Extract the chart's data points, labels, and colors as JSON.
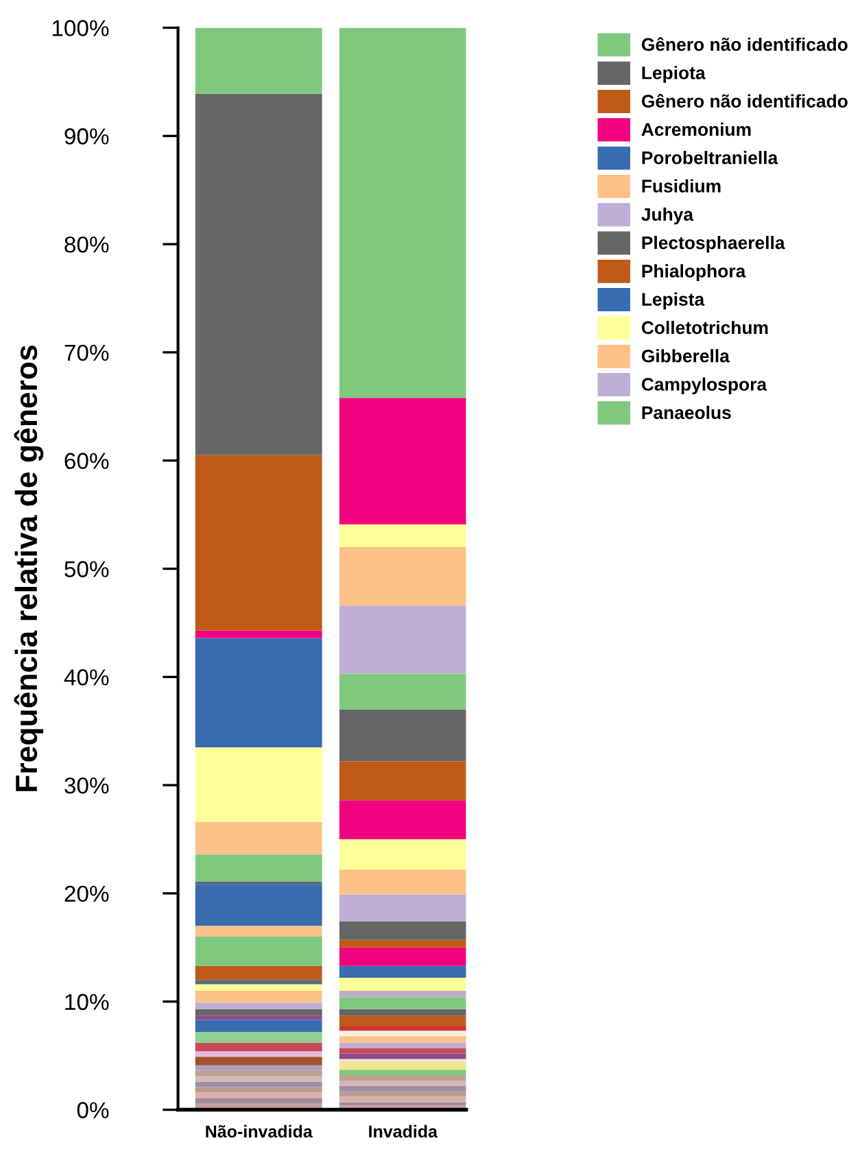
{
  "chart_data": {
    "type": "bar",
    "stacked": true,
    "ylabel": "Frequência relativa de gêneros",
    "categories": [
      "Não-invadida",
      "Invadida"
    ],
    "ylim": [
      0,
      100
    ],
    "yticks": [
      {
        "value": 0,
        "label": "0%"
      },
      {
        "value": 10,
        "label": "10%"
      },
      {
        "value": 20,
        "label": "20%"
      },
      {
        "value": 30,
        "label": "30%"
      },
      {
        "value": 40,
        "label": "40%"
      },
      {
        "value": 50,
        "label": "50%"
      },
      {
        "value": 60,
        "label": "60%"
      },
      {
        "value": 70,
        "label": "70%"
      },
      {
        "value": 80,
        "label": "80%"
      },
      {
        "value": 90,
        "label": "90%"
      },
      {
        "value": 100,
        "label": "100%"
      }
    ],
    "grid": false,
    "legend": "right",
    "series": [
      {
        "color": "#c7a0a0",
        "values": [
          null,
          0.4
        ]
      },
      {
        "color": "#a08a9a",
        "values": [
          null,
          0.3
        ]
      },
      {
        "color": "#d8b0a8",
        "values": [
          null,
          0.5
        ]
      },
      {
        "color": "#b89c8c",
        "values": [
          null,
          0.5
        ]
      },
      {
        "color": "#9c8fa8",
        "values": [
          null,
          0.5
        ]
      },
      {
        "color": "#d4b8b8",
        "values": [
          null,
          0.5
        ]
      },
      {
        "color": "#c0a090",
        "values": [
          null,
          0.5
        ]
      },
      {
        "name": "Panaeolus",
        "color": "#7fc97f",
        "values": [
          null,
          0.5
        ]
      },
      {
        "color": "#f0e68c",
        "values": [
          null,
          0.7
        ]
      },
      {
        "color": "#f2e0d0",
        "values": [
          null,
          0.3
        ]
      },
      {
        "color": "#8e4a8a",
        "values": [
          null,
          0.5
        ]
      },
      {
        "color": "#c84a5a",
        "values": [
          null,
          0.5
        ]
      },
      {
        "name": "Campylospora",
        "color": "#beaed4",
        "values": [
          null,
          0.5
        ]
      },
      {
        "name": "Gibberella",
        "color": "#fdc086",
        "values": [
          null,
          0.6
        ]
      },
      {
        "color": "#f8f0d8",
        "values": [
          null,
          0.5
        ]
      },
      {
        "color": "#d03040",
        "values": [
          null,
          0.4
        ]
      },
      {
        "color": "#bf5b17",
        "values": [
          null,
          1.0
        ]
      },
      {
        "color": "#666666",
        "values": [
          null,
          0.6
        ]
      },
      {
        "color": "#7fc97f",
        "values": [
          null,
          1.1
        ]
      },
      {
        "color": "#b8b0c0",
        "values": [
          null,
          0.6
        ]
      },
      {
        "name": "Colletotrichum",
        "color": "#ffff99",
        "values": [
          null,
          1.2
        ]
      },
      {
        "name": "Lepista",
        "color": "#386cb0",
        "values": [
          null,
          1.1
        ]
      },
      {
        "color": "#f0027f",
        "values": [
          null,
          1.7
        ]
      },
      {
        "color": "#bf5b17",
        "values": [
          null,
          0.7
        ]
      },
      {
        "color": "#666666",
        "values": [
          null,
          1.7
        ]
      },
      {
        "color": "#beaed4",
        "values": [
          null,
          2.5
        ]
      },
      {
        "color": "#fdc086",
        "values": [
          null,
          2.3
        ]
      },
      {
        "color": "#ffff99",
        "values": [
          null,
          2.8
        ]
      },
      {
        "color": "#f0027f",
        "values": [
          null,
          3.6
        ]
      },
      {
        "name": "Phialophora",
        "color": "#bf5b17",
        "values": [
          null,
          3.6
        ]
      },
      {
        "color": "#666666",
        "values": [
          null,
          4.8
        ]
      },
      {
        "color": "#7fc97f",
        "values": [
          null,
          3.3
        ]
      },
      {
        "color": "#beaed4",
        "values": [
          null,
          6.3
        ]
      },
      {
        "color": "#fdc086",
        "values": [
          null,
          5.4
        ]
      },
      {
        "color": "#ffff99",
        "values": [
          null,
          2.1
        ]
      },
      {
        "color": "#f0027f",
        "values": [
          null,
          11.7
        ]
      },
      {
        "color": "#7fc97f",
        "values": [
          null,
          34.2
        ]
      },
      {
        "color": "#c7a0a0",
        "values": [
          0.6,
          null
        ]
      },
      {
        "color": "#a08a9a",
        "values": [
          0.5,
          null
        ]
      },
      {
        "color": "#d8b0a8",
        "values": [
          0.5,
          null
        ]
      },
      {
        "color": "#b89c8c",
        "values": [
          0.5,
          null
        ]
      },
      {
        "color": "#9c8fa8",
        "values": [
          0.5,
          null
        ]
      },
      {
        "color": "#d4b8b8",
        "values": [
          0.5,
          null
        ]
      },
      {
        "color": "#c0a090",
        "values": [
          0.5,
          null
        ]
      },
      {
        "color": "#b0a0b8",
        "values": [
          0.5,
          null
        ]
      },
      {
        "color": "#a0522d",
        "values": [
          0.8,
          null
        ]
      },
      {
        "color": "#e8b8d8",
        "values": [
          0.5,
          null
        ]
      },
      {
        "color": "#c84a5a",
        "values": [
          0.8,
          null
        ]
      },
      {
        "color": "#90d090",
        "values": [
          1.0,
          null
        ]
      },
      {
        "color": "#386cb0",
        "values": [
          1.1,
          null
        ]
      },
      {
        "color": "#8e4a8a",
        "values": [
          0.4,
          null
        ]
      },
      {
        "name": "Plectosphaerella",
        "color": "#666666",
        "values": [
          0.6,
          null
        ]
      },
      {
        "name": "Juhya",
        "color": "#beaed4",
        "values": [
          0.6,
          null
        ]
      },
      {
        "color": "#fdc086",
        "values": [
          1.1,
          null
        ]
      },
      {
        "color": "#ffff99",
        "values": [
          0.6,
          null
        ]
      },
      {
        "color": "#5a6a80",
        "values": [
          0.4,
          null
        ]
      },
      {
        "color": "#bf5b17",
        "values": [
          1.3,
          null
        ]
      },
      {
        "color": "#7fc97f",
        "values": [
          2.7,
          null
        ]
      },
      {
        "color": "#fdc086",
        "values": [
          1.0,
          null
        ]
      },
      {
        "color": "#386cb0",
        "values": [
          3.8,
          null
        ]
      },
      {
        "color": "#5a6a80",
        "values": [
          0.3,
          null
        ]
      },
      {
        "color": "#7fc97f",
        "values": [
          2.5,
          null
        ]
      },
      {
        "name": "Fusidium",
        "color": "#fdc086",
        "values": [
          3.0,
          null
        ]
      },
      {
        "color": "#ffff99",
        "values": [
          6.9,
          null
        ]
      },
      {
        "name": "Porobeltraniella",
        "color": "#386cb0",
        "values": [
          10.1,
          null
        ]
      },
      {
        "name": "Acremonium",
        "color": "#f0027f",
        "values": [
          0.7,
          null
        ]
      },
      {
        "name": "Gênero não identificado",
        "color": "#bf5b17",
        "values": [
          16.2,
          null
        ]
      },
      {
        "name": "Lepiota",
        "color": "#666666",
        "values": [
          33.4,
          null
        ]
      },
      {
        "name": "Gênero não identificado",
        "color": "#7fc97f",
        "values": [
          6.1,
          null
        ]
      }
    ]
  }
}
